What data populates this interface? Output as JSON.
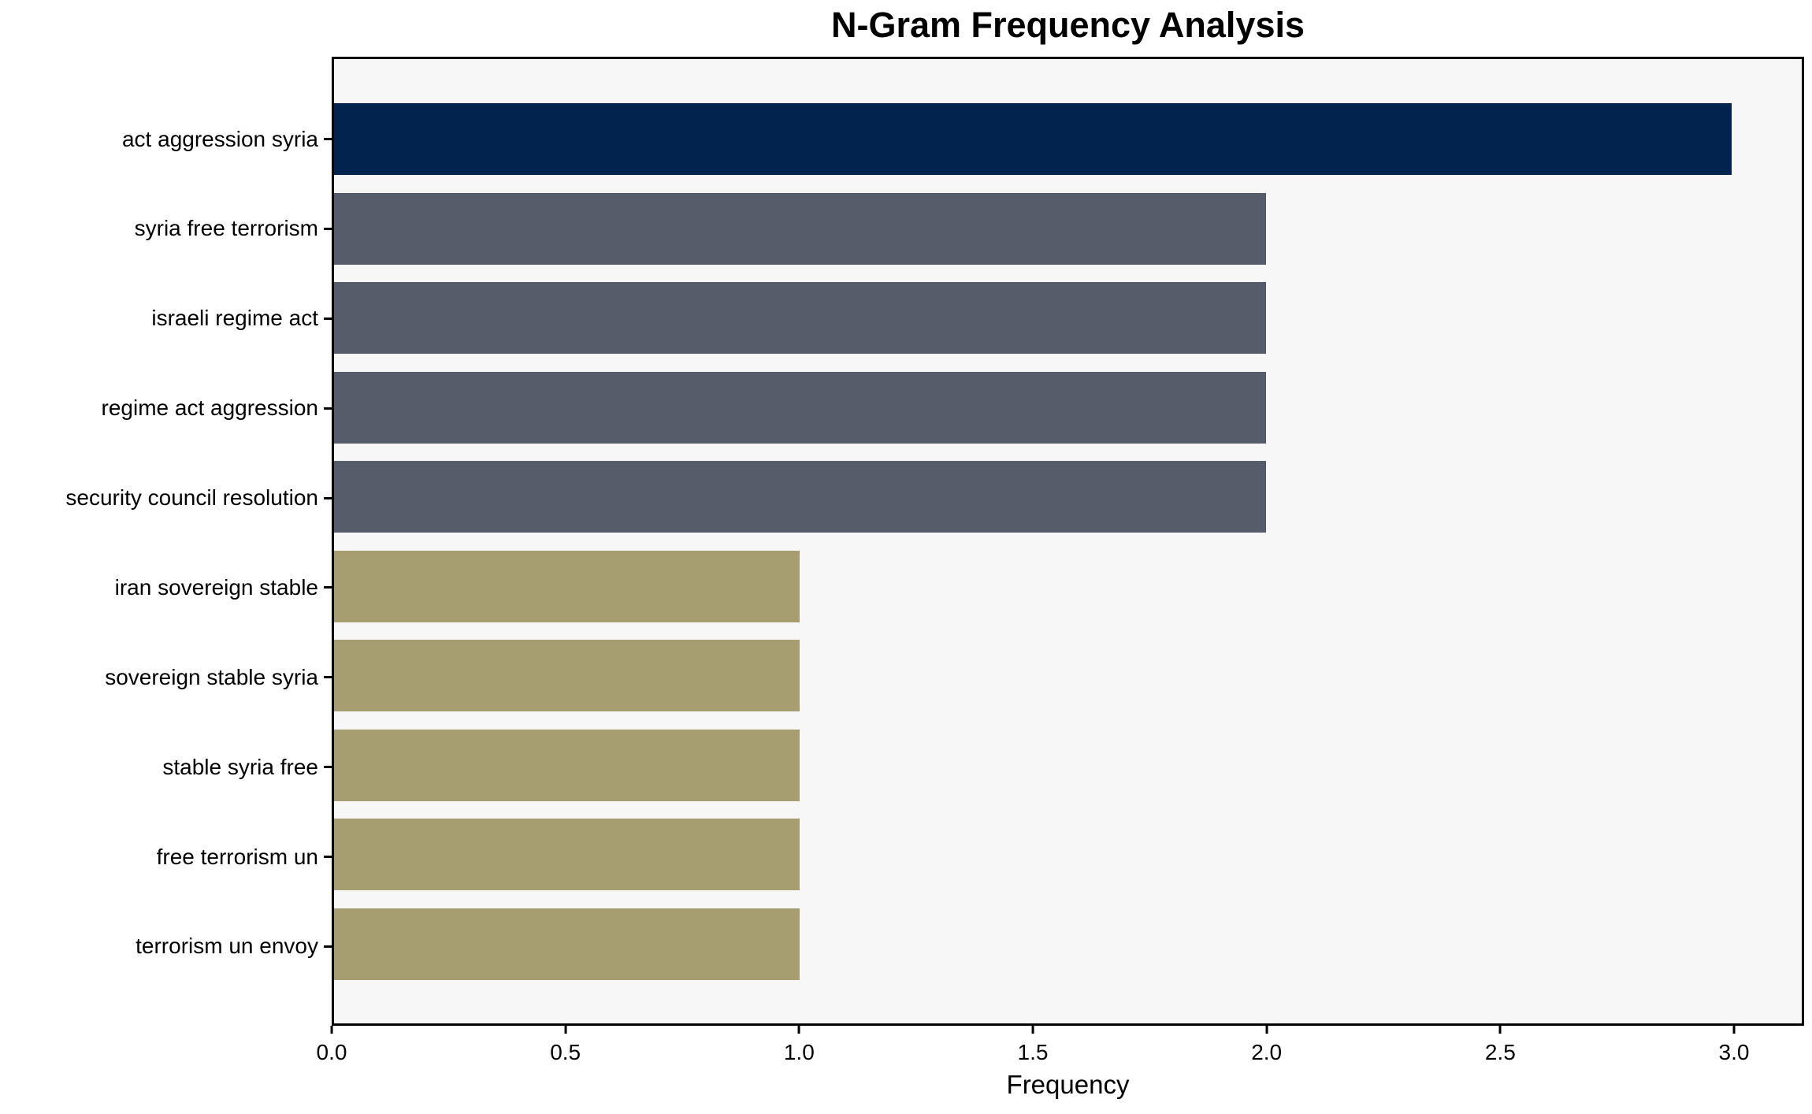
{
  "chart_data": {
    "type": "bar",
    "orientation": "horizontal",
    "title": "N-Gram Frequency Analysis",
    "xlabel": "Frequency",
    "ylabel": "",
    "categories": [
      "act aggression syria",
      "syria free terrorism",
      "israeli regime act",
      "regime act aggression",
      "security council resolution",
      "iran sovereign stable",
      "sovereign stable syria",
      "stable syria free",
      "free terrorism un",
      "terrorism un envoy"
    ],
    "values": [
      3,
      2,
      2,
      2,
      2,
      1,
      1,
      1,
      1,
      1
    ],
    "xlim": [
      0,
      3.15
    ],
    "xticks": [
      0,
      0.5,
      1.0,
      1.5,
      2.0,
      2.5,
      3.0
    ],
    "xtick_labels": [
      "0.0",
      "0.5",
      "1.0",
      "1.5",
      "2.0",
      "2.5",
      "3.0"
    ],
    "grid": false,
    "legend": null,
    "colors": {
      "bar_colors": [
        "#02234d",
        "#575c6a",
        "#575c6a",
        "#575c6a",
        "#575c6a",
        "#a69e71",
        "#a69e71",
        "#a69e71",
        "#a69e71",
        "#a69e71"
      ],
      "plot_background": "#f7f7f7",
      "figure_background": "#ffffff",
      "spine": "#000000",
      "text": "#000000"
    }
  }
}
